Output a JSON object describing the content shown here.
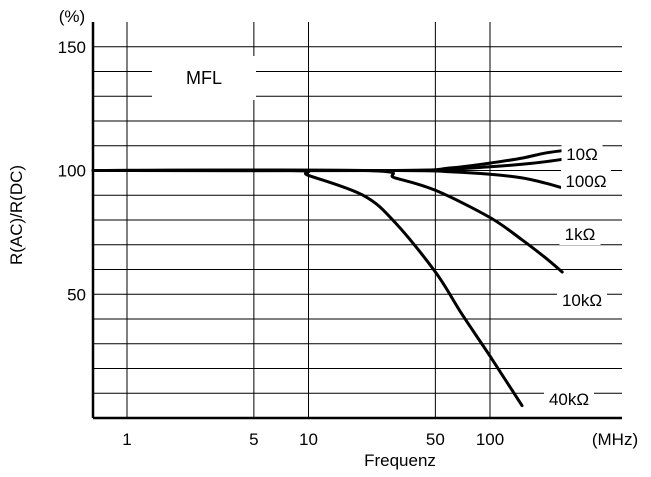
{
  "chart_data": {
    "type": "line",
    "title": "",
    "annotation": "MFL",
    "xlabel": "Frequenz",
    "xunit": "(MHz)",
    "ylabel": "R(AC)/R(DC)",
    "yunit": "(%)",
    "x_scale": "log",
    "xlim": [
      0.5,
      300
    ],
    "ylim": [
      0,
      160
    ],
    "x_ticks": [
      1,
      5,
      10,
      50,
      100
    ],
    "x_tick_labels": [
      "1",
      "5",
      "10",
      "50",
      "100"
    ],
    "y_ticks": [
      50,
      100,
      150
    ],
    "y_tick_labels": [
      "50",
      "100",
      "150"
    ],
    "grid": true,
    "series": [
      {
        "name": "10Ω",
        "x": [
          0.5,
          30,
          60,
          100,
          150,
          200,
          250
        ],
        "y": [
          100,
          100,
          101,
          103,
          105,
          107,
          108
        ]
      },
      {
        "name": "100Ω",
        "x": [
          0.5,
          30,
          60,
          100,
          150,
          200,
          250
        ],
        "y": [
          100,
          100,
          100.5,
          101.5,
          102.5,
          103.5,
          104.5
        ]
      },
      {
        "name": "1kΩ",
        "x": [
          0.5,
          30,
          60,
          100,
          150,
          200,
          250
        ],
        "y": [
          100,
          100,
          99.5,
          98.5,
          97,
          95,
          93
        ]
      },
      {
        "name": "10kΩ",
        "x": [
          0.5,
          20,
          30,
          50,
          100,
          150,
          200,
          250
        ],
        "y": [
          100,
          100,
          97,
          92,
          81,
          72,
          65,
          59
        ]
      },
      {
        "name": "40kΩ",
        "x": [
          0.5,
          8,
          10,
          20,
          30,
          50,
          70,
          100,
          150
        ],
        "y": [
          100,
          100,
          98,
          90,
          79,
          59,
          42,
          25,
          5
        ]
      }
    ]
  }
}
